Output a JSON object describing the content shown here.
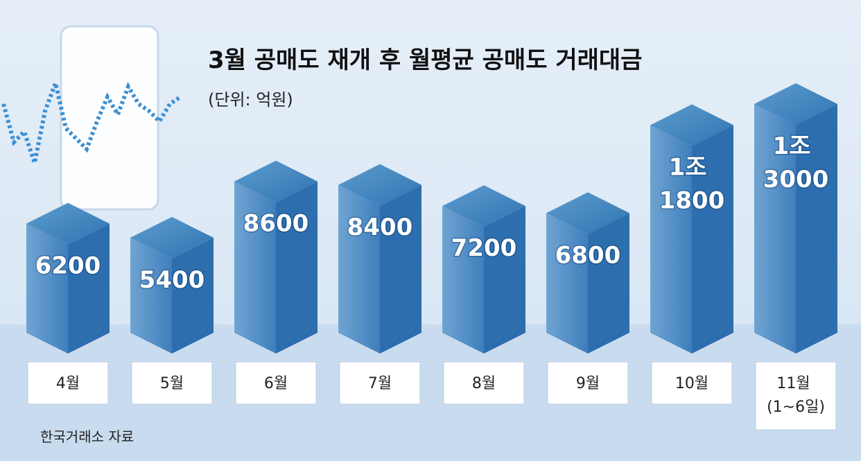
{
  "title": "3월 공매도 재개 후 월평균 공매도 거래대금",
  "subtitle": "(단위: 억원)",
  "source": "한국거래소 자료",
  "chart_data": {
    "type": "bar3d",
    "categories": [
      "4월",
      "5월",
      "6월",
      "7월",
      "8월",
      "9월",
      "10월",
      "11월 (1~6일)"
    ],
    "values": [
      6200,
      5400,
      8600,
      8400,
      7200,
      6800,
      11800,
      13000
    ],
    "value_labels": [
      "6200",
      "5400",
      "8600",
      "8400",
      "7200",
      "6800",
      "1조 1800",
      "1조 3000"
    ],
    "color": "#2d6fae"
  }
}
